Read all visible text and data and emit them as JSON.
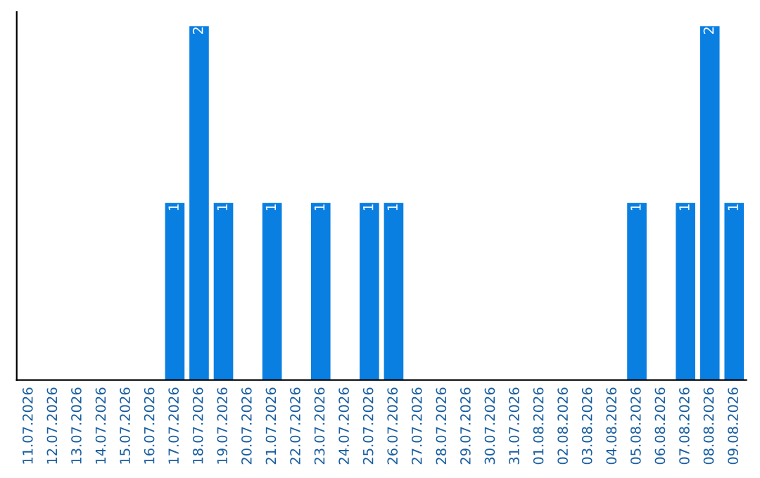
{
  "chart_data": {
    "type": "bar",
    "categories": [
      "11.07.2026",
      "12.07.2026",
      "13.07.2026",
      "14.07.2026",
      "15.07.2026",
      "16.07.2026",
      "17.07.2026",
      "18.07.2026",
      "19.07.2026",
      "20.07.2026",
      "21.07.2026",
      "22.07.2026",
      "23.07.2026",
      "24.07.2026",
      "25.07.2026",
      "26.07.2026",
      "27.07.2026",
      "28.07.2026",
      "29.07.2026",
      "30.07.2026",
      "31.07.2026",
      "01.08.2026",
      "02.08.2026",
      "03.08.2026",
      "04.08.2026",
      "05.08.2026",
      "06.08.2026",
      "07.08.2026",
      "08.08.2026",
      "09.08.2026"
    ],
    "values": [
      0,
      0,
      0,
      0,
      0,
      0,
      1,
      2,
      1,
      0,
      1,
      0,
      1,
      0,
      1,
      1,
      0,
      0,
      0,
      0,
      0,
      0,
      0,
      0,
      0,
      1,
      0,
      1,
      2,
      1
    ],
    "value_labels": [
      null,
      null,
      null,
      null,
      null,
      null,
      "1",
      "2",
      "1",
      null,
      "1",
      null,
      "1",
      null,
      "1",
      "1",
      null,
      null,
      null,
      null,
      null,
      null,
      null,
      null,
      null,
      "1",
      null,
      "1",
      "2",
      "1"
    ],
    "color": "#0a7fe2",
    "tick_labels": "x",
    "grid": false,
    "legend": false
  }
}
